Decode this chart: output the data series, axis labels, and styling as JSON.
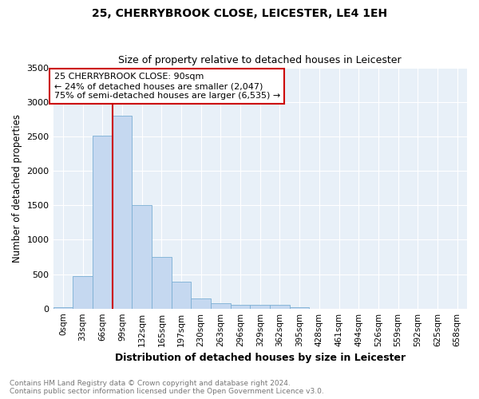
{
  "title": "25, CHERRYBROOK CLOSE, LEICESTER, LE4 1EH",
  "subtitle": "Size of property relative to detached houses in Leicester",
  "xlabel": "Distribution of detached houses by size in Leicester",
  "ylabel": "Number of detached properties",
  "bar_color": "#c5d8f0",
  "bar_edge_color": "#7bafd4",
  "background_color": "#e8f0f8",
  "grid_color": "#ffffff",
  "categories": [
    "0sqm",
    "33sqm",
    "66sqm",
    "99sqm",
    "132sqm",
    "165sqm",
    "197sqm",
    "230sqm",
    "263sqm",
    "296sqm",
    "329sqm",
    "362sqm",
    "395sqm",
    "428sqm",
    "461sqm",
    "494sqm",
    "526sqm",
    "559sqm",
    "592sqm",
    "625sqm",
    "658sqm"
  ],
  "values": [
    25,
    475,
    2510,
    2800,
    1500,
    750,
    390,
    150,
    80,
    55,
    50,
    50,
    25,
    0,
    0,
    0,
    0,
    0,
    0,
    0,
    0
  ],
  "ylim": [
    0,
    3500
  ],
  "yticks": [
    0,
    500,
    1000,
    1500,
    2000,
    2500,
    3000,
    3500
  ],
  "property_line_x": 99,
  "property_line_label": "25 CHERRYBROOK CLOSE: 90sqm",
  "annotation_line1": "← 24% of detached houses are smaller (2,047)",
  "annotation_line2": "75% of semi-detached houses are larger (6,535) →",
  "annotation_box_color": "#ffffff",
  "annotation_box_edge": "#cc0000",
  "vline_color": "#cc0000",
  "footer1": "Contains HM Land Registry data © Crown copyright and database right 2024.",
  "footer2": "Contains public sector information licensed under the Open Government Licence v3.0.",
  "bin_width": 33,
  "n_bins": 21
}
